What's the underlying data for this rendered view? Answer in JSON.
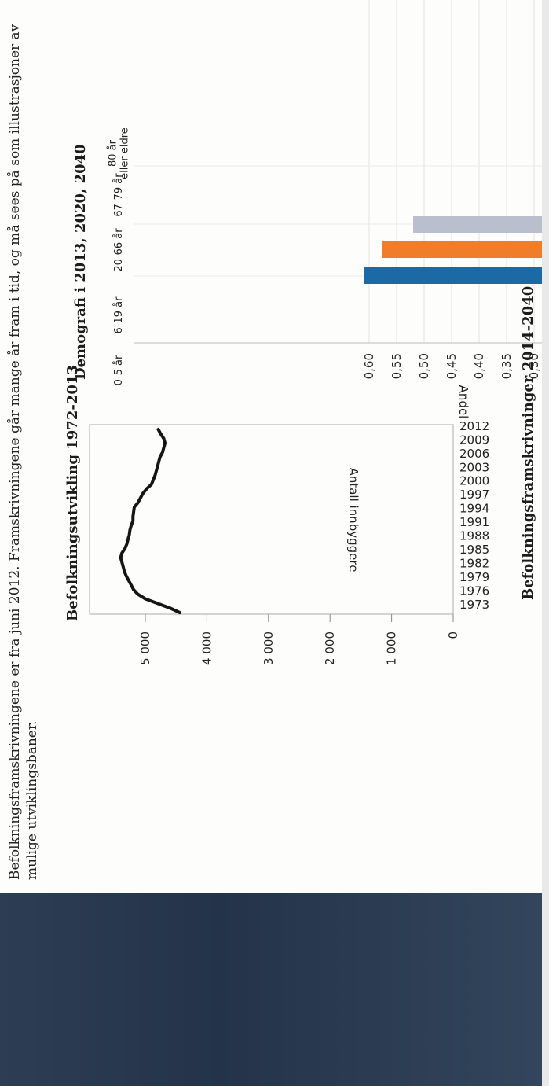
{
  "intro_text": "Befolkningsframskrivningene er fra juni 2012. Framskrivningene går mange år fram i tid, og må sees på som illustrasjoner av mulige utviklingsbaner.",
  "line_title": "Befolkningsutvikling 1972-2013",
  "bar_title": "Demografi i  2013, 2020, 2040",
  "bottom_title": "Befolkningsframskrivninger 2014-2040",
  "colors": {
    "line": "#151515",
    "bar_2013": "#1b6aa5",
    "bar_2020": "#f07d2a",
    "bar_2040": "#b9bfcc"
  },
  "chart_data": [
    {
      "type": "line",
      "title": "Befolkningsutvikling 1972-2013",
      "ylabel": "Antall innbyggere",
      "xlabel": "",
      "ylim": [
        0,
        5600
      ],
      "yticks": [
        0,
        1000,
        2000,
        3000,
        4000,
        5000
      ],
      "ytick_labels": [
        "0",
        "1 000",
        "2 000",
        "3 000",
        "4 000",
        "5 000"
      ],
      "xticks": [
        1973,
        1976,
        1979,
        1982,
        1985,
        1988,
        1991,
        1994,
        1997,
        2000,
        2003,
        2006,
        2009,
        2012
      ],
      "x": [
        1973,
        1974,
        1975,
        1976,
        1977,
        1978,
        1979,
        1980,
        1981,
        1982,
        1983,
        1984,
        1985,
        1986,
        1987,
        1988,
        1989,
        1990,
        1991,
        1992,
        1993,
        1994,
        1995,
        1996,
        1997,
        1998,
        1999,
        2000,
        2001,
        2002,
        2003,
        2004,
        2005,
        2006,
        2007,
        2008,
        2009,
        2010,
        2011,
        2012,
        2013
      ],
      "series": [
        {
          "values": [
            4440,
            4600,
            4800,
            5000,
            5120,
            5190,
            5230,
            5270,
            5310,
            5340,
            5360,
            5380,
            5400,
            5380,
            5330,
            5300,
            5280,
            5260,
            5250,
            5230,
            5200,
            5200,
            5190,
            5180,
            5120,
            5080,
            5040,
            4980,
            4900,
            4870,
            4840,
            4820,
            4800,
            4780,
            4760,
            4720,
            4700,
            4680,
            4700,
            4750,
            4790
          ]
        }
      ],
      "grid": false
    },
    {
      "type": "bar",
      "title": "Demografi i  2013, 2020, 2040",
      "ylabel": "Andel",
      "xlabel": "",
      "categories": [
        "0-5 år",
        "6-19 år",
        "20-66 år",
        "67-79 år",
        "80 år eller eldre"
      ],
      "yticks": [
        0.3,
        0.35,
        0.4,
        0.45,
        0.5,
        0.55,
        0.6
      ],
      "ytick_labels": [
        "0,30",
        "0,35",
        "0,40",
        "0,45",
        "0,50",
        "0,55",
        "0,60"
      ],
      "series": [
        {
          "values": [
            null,
            null,
            0.61,
            null,
            null
          ]
        },
        {
          "values": [
            null,
            null,
            0.576,
            null,
            null
          ]
        },
        {
          "values": [
            null,
            null,
            0.52,
            null,
            null
          ]
        }
      ],
      "grid": true
    }
  ]
}
